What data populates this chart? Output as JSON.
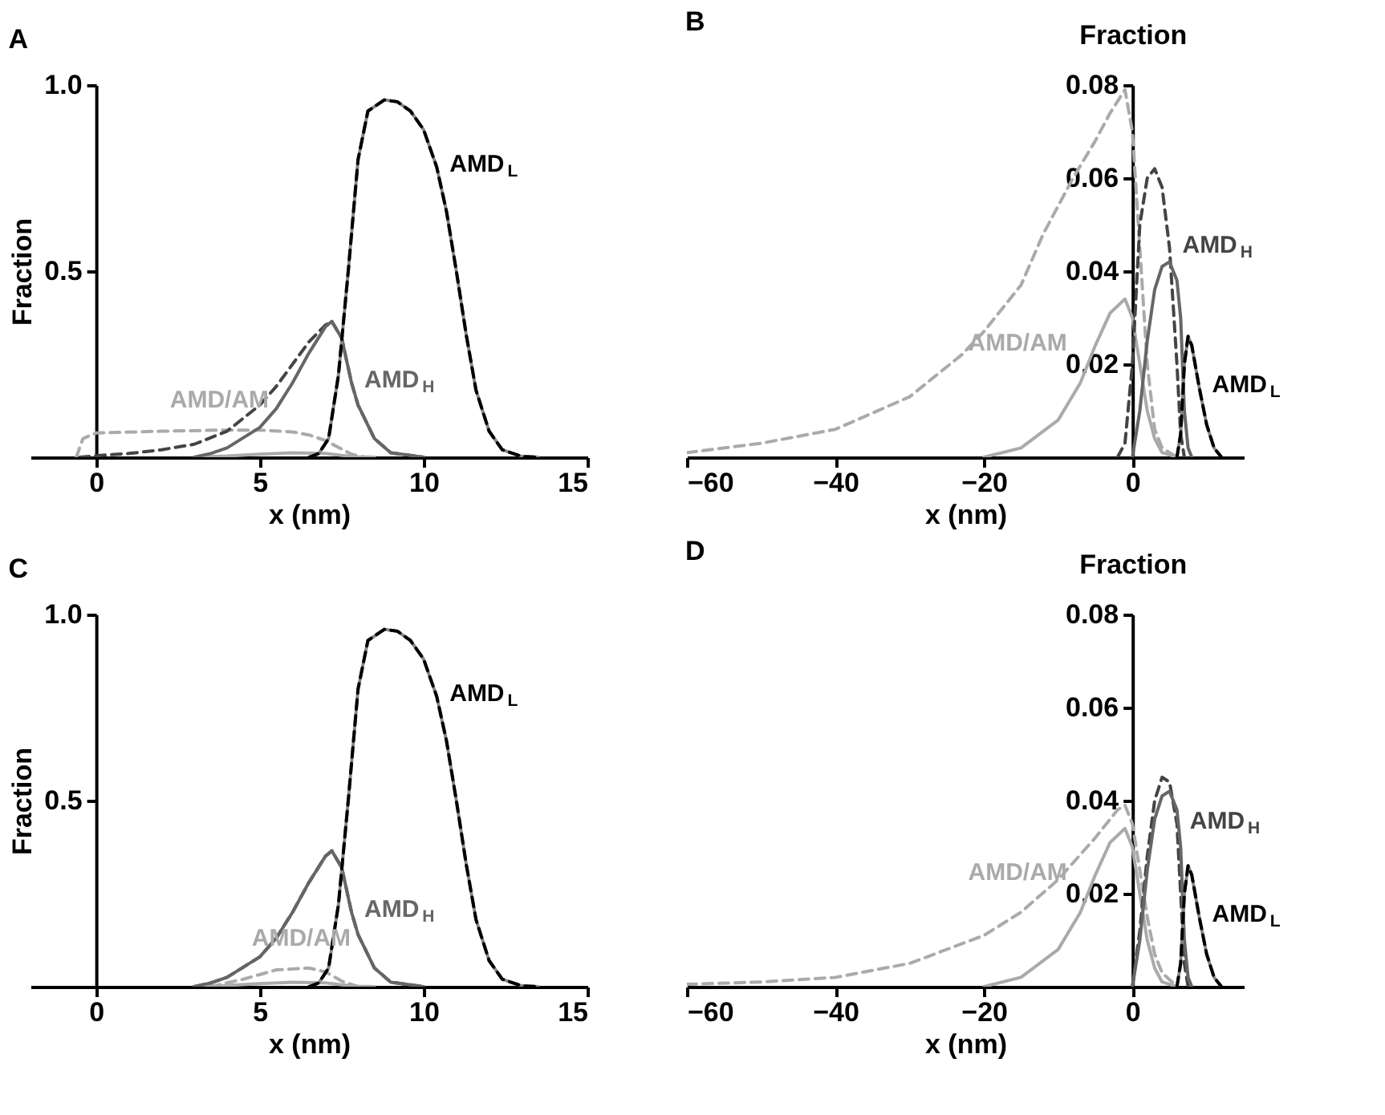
{
  "chart_data": [
    {
      "type": "line",
      "title": "A",
      "xlabel": "x (nm)",
      "ylabel": "Fraction",
      "xlim": [
        -2,
        15
      ],
      "xticks": [
        0,
        5,
        10,
        15
      ],
      "ylim": [
        0,
        1
      ],
      "yticks": [
        0.5,
        {
          "value": 1,
          "label": "1.0"
        }
      ],
      "series": [
        {
          "name": "AMD/AM",
          "color": "#aaaaaa",
          "line_style": "dashed",
          "x": [
            -0.6,
            -0.4,
            0,
            2,
            4,
            5,
            6,
            6.5,
            7,
            7.5,
            7.8,
            8.2
          ],
          "values": [
            0,
            0.05,
            0.065,
            0.07,
            0.073,
            0.073,
            0.068,
            0.06,
            0.045,
            0.022,
            0.008,
            0
          ]
        },
        {
          "color": "#aaaaaa",
          "line_style": "solid",
          "x": [
            3,
            4,
            5,
            6,
            7,
            7.5,
            8,
            8.5
          ],
          "values": [
            0,
            0.003,
            0.008,
            0.012,
            0.01,
            0.005,
            0.001,
            0
          ]
        },
        {
          "color": "#444444",
          "line_style": "dashed",
          "x": [
            -0.5,
            0,
            1,
            2,
            3,
            4,
            5,
            5.5,
            6,
            6.5,
            7,
            7.2,
            7.5,
            7.8,
            8,
            8.5,
            9,
            10
          ],
          "values": [
            0,
            0.004,
            0.01,
            0.02,
            0.035,
            0.07,
            0.14,
            0.19,
            0.25,
            0.31,
            0.355,
            0.365,
            0.32,
            0.2,
            0.14,
            0.05,
            0.012,
            0
          ]
        },
        {
          "name": "AMD$_{H}$",
          "color": "#666666",
          "line_style": "solid",
          "x": [
            3,
            3.5,
            4,
            5,
            5.5,
            6,
            6.5,
            7,
            7.2,
            7.5,
            7.8,
            8,
            8.5,
            9,
            10
          ],
          "values": [
            0,
            0.01,
            0.025,
            0.08,
            0.13,
            0.2,
            0.28,
            0.35,
            0.365,
            0.32,
            0.2,
            0.14,
            0.05,
            0.012,
            0
          ]
        },
        {
          "color": "#888888",
          "line_style": "solid",
          "x": [
            6.5,
            6.8,
            7.1,
            7.4,
            7.7,
            8,
            8.3,
            8.8,
            9.2,
            9.6,
            10,
            10.4,
            10.7,
            11,
            11.3,
            11.6,
            12,
            12.4,
            13,
            13.5
          ],
          "values": [
            0,
            0.01,
            0.05,
            0.22,
            0.5,
            0.8,
            0.93,
            0.96,
            0.955,
            0.93,
            0.88,
            0.78,
            0.66,
            0.5,
            0.33,
            0.18,
            0.07,
            0.02,
            0.002,
            0
          ]
        },
        {
          "name": "AMD$_{L}$",
          "color": "#000000",
          "line_style": "dashed",
          "x": [
            6.5,
            6.8,
            7.1,
            7.4,
            7.7,
            8,
            8.3,
            8.8,
            9.2,
            9.6,
            10,
            10.4,
            10.7,
            11,
            11.3,
            11.6,
            12,
            12.4,
            13,
            13.5
          ],
          "values": [
            0,
            0.01,
            0.05,
            0.22,
            0.5,
            0.8,
            0.93,
            0.96,
            0.955,
            0.93,
            0.88,
            0.78,
            0.66,
            0.5,
            0.33,
            0.18,
            0.07,
            0.02,
            0.002,
            0
          ]
        }
      ]
    },
    {
      "type": "line",
      "title": "B",
      "xlabel": "x (nm)",
      "ylabel": "Fraction",
      "xlim": [
        -60,
        15
      ],
      "xticks": [
        -60,
        -40,
        -20,
        0
      ],
      "ylim": [
        0,
        0.08
      ],
      "yticks": [
        0.02,
        0.04,
        0.06,
        0.08
      ],
      "series": [
        {
          "color": "#aaaaaa",
          "line_style": "dashed",
          "x": [
            -60,
            -50,
            -40,
            -30,
            -23,
            -20,
            -15,
            -12,
            -8,
            -5,
            -3,
            -1,
            0,
            1,
            2,
            3,
            4,
            6
          ],
          "values": [
            0.001,
            0.003,
            0.006,
            0.013,
            0.022,
            0.027,
            0.037,
            0.048,
            0.06,
            0.068,
            0.074,
            0.079,
            0.07,
            0.045,
            0.02,
            0.006,
            0.002,
            0
          ]
        },
        {
          "name": "AMD/AM",
          "color": "#aaaaaa",
          "line_style": "solid",
          "x": [
            -20,
            -15,
            -10,
            -7,
            -5,
            -3,
            -1,
            0,
            1,
            2,
            3,
            4,
            6
          ],
          "values": [
            0,
            0.002,
            0.008,
            0.016,
            0.024,
            0.031,
            0.034,
            0.03,
            0.02,
            0.01,
            0.004,
            0.001,
            0
          ]
        },
        {
          "name": "AMD$_{H}$",
          "color": "#444444",
          "line_style": "dashed",
          "x": [
            -2,
            -1,
            0,
            1,
            2,
            3,
            4,
            5,
            6,
            6.5,
            7
          ],
          "values": [
            0,
            0.003,
            0.02,
            0.05,
            0.06,
            0.062,
            0.058,
            0.045,
            0.02,
            0.005,
            0
          ]
        },
        {
          "color": "#666666",
          "line_style": "solid",
          "x": [
            0,
            1,
            2,
            3,
            4,
            5,
            6,
            6.5,
            7,
            7.5,
            8
          ],
          "values": [
            0,
            0.01,
            0.025,
            0.036,
            0.041,
            0.042,
            0.038,
            0.03,
            0.01,
            0.002,
            0
          ]
        },
        {
          "color": "#888888",
          "line_style": "solid",
          "x": [
            6,
            6.5,
            7,
            7.5,
            8,
            9,
            10,
            11,
            12
          ],
          "values": [
            0,
            0.005,
            0.02,
            0.026,
            0.024,
            0.015,
            0.007,
            0.002,
            0
          ]
        },
        {
          "name": "AMD$_{L}$",
          "color": "#000000",
          "line_style": "dashed",
          "x": [
            6,
            6.5,
            7,
            7.5,
            8,
            9,
            10,
            11,
            12
          ],
          "values": [
            0,
            0.005,
            0.02,
            0.026,
            0.024,
            0.015,
            0.007,
            0.002,
            0
          ]
        }
      ]
    },
    {
      "type": "line",
      "title": "C",
      "xlabel": "x (nm)",
      "ylabel": "Fraction",
      "xlim": [
        -2,
        15
      ],
      "xticks": [
        0,
        5,
        10,
        15
      ],
      "ylim": [
        0,
        1
      ],
      "yticks": [
        0.5,
        {
          "value": 1,
          "label": "1.0"
        }
      ],
      "series": [
        {
          "name": "AMD/AM",
          "color": "#aaaaaa",
          "line_style": "dashed",
          "x": [
            3.5,
            4.5,
            5.5,
            6.5,
            7,
            7.5,
            8
          ],
          "values": [
            0,
            0.02,
            0.045,
            0.05,
            0.04,
            0.015,
            0
          ]
        },
        {
          "color": "#aaaaaa",
          "line_style": "solid",
          "x": [
            3,
            4,
            5,
            6,
            7,
            7.5,
            8,
            8.5
          ],
          "values": [
            0,
            0.003,
            0.008,
            0.012,
            0.01,
            0.005,
            0.001,
            0
          ]
        },
        {
          "color": "#444444",
          "line_style": "dashed",
          "x": [
            3,
            3.5,
            4,
            5,
            5.5,
            6,
            6.5,
            7,
            7.2,
            7.5,
            7.8,
            8,
            8.5,
            9,
            10
          ],
          "values": [
            0,
            0.01,
            0.025,
            0.08,
            0.13,
            0.2,
            0.28,
            0.35,
            0.365,
            0.32,
            0.2,
            0.14,
            0.05,
            0.012,
            0
          ]
        },
        {
          "name": "AMD$_{H}$",
          "color": "#666666",
          "line_style": "solid",
          "x": [
            3,
            3.5,
            4,
            5,
            5.5,
            6,
            6.5,
            7,
            7.2,
            7.5,
            7.8,
            8,
            8.5,
            9,
            10
          ],
          "values": [
            0,
            0.01,
            0.025,
            0.08,
            0.13,
            0.2,
            0.28,
            0.35,
            0.365,
            0.32,
            0.2,
            0.14,
            0.05,
            0.012,
            0
          ]
        },
        {
          "color": "#888888",
          "line_style": "solid",
          "x": [
            6.5,
            6.8,
            7.1,
            7.4,
            7.7,
            8,
            8.3,
            8.8,
            9.2,
            9.6,
            10,
            10.4,
            10.7,
            11,
            11.3,
            11.6,
            12,
            12.4,
            13,
            13.5
          ],
          "values": [
            0,
            0.01,
            0.05,
            0.22,
            0.5,
            0.8,
            0.93,
            0.96,
            0.955,
            0.93,
            0.88,
            0.78,
            0.66,
            0.5,
            0.33,
            0.18,
            0.07,
            0.02,
            0.002,
            0
          ]
        },
        {
          "name": "AMD$_{L}$",
          "color": "#000000",
          "line_style": "dashed",
          "x": [
            6.5,
            6.8,
            7.1,
            7.4,
            7.7,
            8,
            8.3,
            8.8,
            9.2,
            9.6,
            10,
            10.4,
            10.7,
            11,
            11.3,
            11.6,
            12,
            12.4,
            13,
            13.5
          ],
          "values": [
            0,
            0.01,
            0.05,
            0.22,
            0.5,
            0.8,
            0.93,
            0.96,
            0.955,
            0.93,
            0.88,
            0.78,
            0.66,
            0.5,
            0.33,
            0.18,
            0.07,
            0.02,
            0.002,
            0
          ]
        }
      ]
    },
    {
      "type": "line",
      "title": "D",
      "xlabel": "x (nm)",
      "ylabel": "Fraction",
      "xlim": [
        -60,
        15
      ],
      "xticks": [
        -60,
        -40,
        -20,
        0
      ],
      "ylim": [
        0,
        0.08
      ],
      "yticks": [
        0.02,
        0.04,
        0.06,
        0.08
      ],
      "series": [
        {
          "color": "#aaaaaa",
          "line_style": "dashed",
          "x": [
            -60,
            -50,
            -40,
            -30,
            -20,
            -15,
            -10,
            -5,
            -2,
            -1,
            0,
            1,
            2,
            3,
            4,
            6
          ],
          "values": [
            0.0005,
            0.001,
            0.002,
            0.005,
            0.011,
            0.016,
            0.023,
            0.032,
            0.038,
            0.039,
            0.035,
            0.025,
            0.015,
            0.007,
            0.003,
            0
          ]
        },
        {
          "name": "AMD/AM",
          "color": "#aaaaaa",
          "line_style": "solid",
          "x": [
            -20,
            -15,
            -10,
            -7,
            -5,
            -3,
            -1,
            0,
            1,
            2,
            3,
            4,
            6
          ],
          "values": [
            0,
            0.002,
            0.008,
            0.016,
            0.024,
            0.031,
            0.034,
            0.03,
            0.02,
            0.01,
            0.004,
            0.001,
            0
          ]
        },
        {
          "name": "AMD$_{H}$",
          "color": "#444444",
          "line_style": "dashed",
          "x": [
            0,
            1,
            2,
            3,
            4,
            5,
            6,
            6.5,
            7,
            7.5
          ],
          "values": [
            0,
            0.012,
            0.028,
            0.04,
            0.045,
            0.044,
            0.035,
            0.02,
            0.005,
            0
          ]
        },
        {
          "color": "#666666",
          "line_style": "solid",
          "x": [
            0,
            1,
            2,
            3,
            4,
            5,
            6,
            6.5,
            7,
            7.5,
            8
          ],
          "values": [
            0,
            0.01,
            0.025,
            0.036,
            0.041,
            0.042,
            0.038,
            0.03,
            0.01,
            0.002,
            0
          ]
        },
        {
          "color": "#888888",
          "line_style": "solid",
          "x": [
            6,
            6.5,
            7,
            7.5,
            8,
            9,
            10,
            11,
            12
          ],
          "values": [
            0,
            0.005,
            0.02,
            0.026,
            0.024,
            0.015,
            0.007,
            0.002,
            0
          ]
        },
        {
          "name": "AMD$_{L}$",
          "color": "#000000",
          "line_style": "dashed",
          "x": [
            6,
            6.5,
            7,
            7.5,
            8,
            9,
            10,
            11,
            12
          ],
          "values": [
            0,
            0.005,
            0.02,
            0.026,
            0.024,
            0.015,
            0.007,
            0.002,
            0
          ]
        }
      ]
    }
  ]
}
